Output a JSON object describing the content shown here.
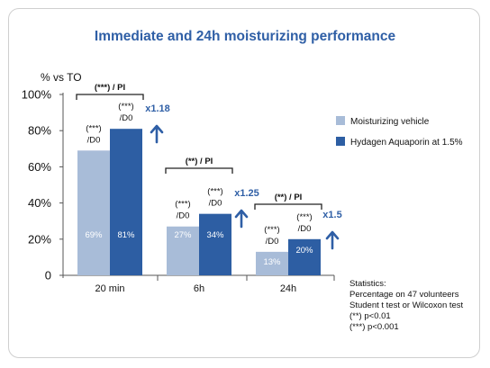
{
  "chart_data": {
    "type": "bar",
    "title": "Immediate and 24h moisturizing performance",
    "ylabel": "% vs TO",
    "ylim": [
      0,
      100
    ],
    "yticks": [
      "0",
      "20%",
      "40%",
      "60%",
      "80%",
      "100%"
    ],
    "categories": [
      "20 min",
      "6h",
      "24h"
    ],
    "series": [
      {
        "name": "Moisturizing vehicle",
        "color": "#a8bcd8",
        "values": [
          69,
          27,
          13
        ],
        "labels": [
          "69%",
          "27%",
          "13%"
        ]
      },
      {
        "name": "Hydagen Aquaporin at 1.5%",
        "color": "#2d5ea3",
        "values": [
          81,
          34,
          20
        ],
        "labels": [
          "81%",
          "34%",
          "20%"
        ]
      }
    ],
    "bar_annotations": [
      [
        "(***)",
        "/D0"
      ],
      [
        "(***)",
        "/D0"
      ],
      [
        "(***)",
        "/D0"
      ],
      [
        "(***)",
        "/D0"
      ],
      [
        "(***)",
        "/D0"
      ],
      [
        "(***)",
        "/D0"
      ]
    ],
    "group_significance": [
      "(***) / PI",
      "(**) / PI",
      "(**) / PI"
    ],
    "fold_change": [
      "x1.18",
      "x1.25",
      "x1.5"
    ],
    "legend_position": "right",
    "grid": false,
    "statistics": [
      "Statistics:",
      "Percentage on 47 volunteers",
      "Student t test or Wilcoxon test",
      "(**) p<0.01",
      "(***) p<0.001"
    ]
  }
}
